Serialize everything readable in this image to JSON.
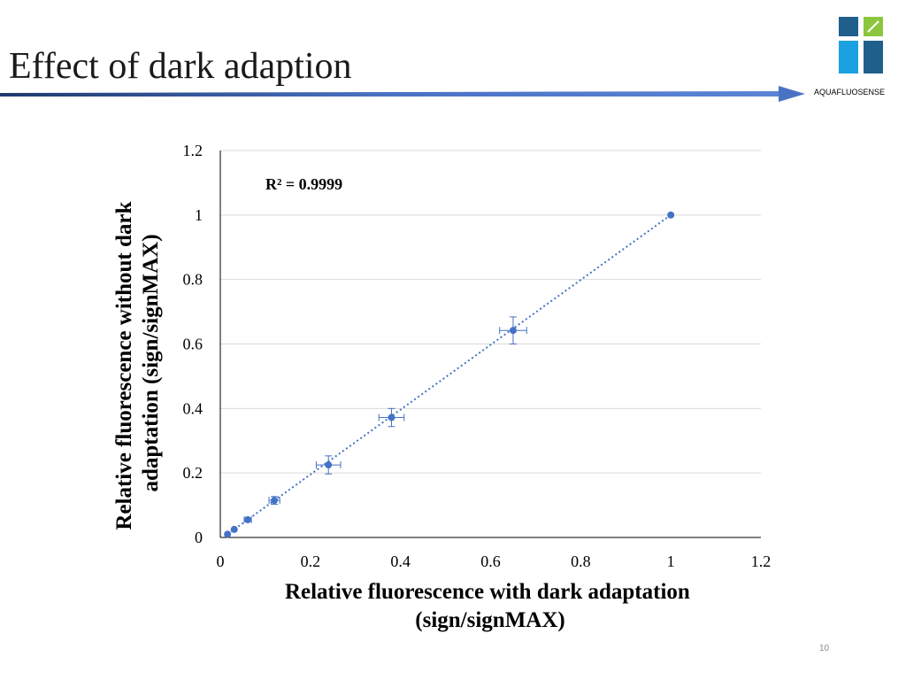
{
  "slide": {
    "title": "Effect of dark adaption",
    "brand": "AQUAFLUOSENSE",
    "page_number": "10"
  },
  "colors": {
    "arrow": "#4a72c4",
    "marker": "#4472c4",
    "trendline": "#4472c4",
    "grid": "#d9d9d9",
    "axis": "#000000",
    "logo_dark": "#1f5f8b",
    "logo_light": "#1ba1e2",
    "logo_green": "#8cc63f"
  },
  "chart_data": {
    "type": "scatter",
    "title": "",
    "xlabel": "Relative fluorescence with dark adaptation (sign/signMAX)",
    "xlabel_lines": [
      "Relative fluorescence with dark adaptation",
      "(sign/signMAX)"
    ],
    "ylabel": "Relative fluorescence without dark adaptation (sign/signMAX)",
    "ylabel_lines": [
      "Relative fluorescence without dark",
      "adaptation (sign/signMAX)"
    ],
    "xlim": [
      0,
      1.2
    ],
    "ylim": [
      0,
      1.2
    ],
    "x_ticks": [
      0,
      0.2,
      0.4,
      0.6,
      0.8,
      1,
      1.2
    ],
    "y_ticks": [
      0,
      0.2,
      0.4,
      0.6,
      0.8,
      1,
      1.2
    ],
    "x_tick_labels": [
      "0",
      "0.2",
      "0.4",
      "0.6",
      "0.8",
      "1",
      "1.2"
    ],
    "y_tick_labels": [
      "0",
      "0.2",
      "0.4",
      "0.6",
      "0.8",
      "1",
      "1.2"
    ],
    "grid": "horizontal",
    "annotation": "R² = 0.9999",
    "trendline": {
      "type": "linear",
      "x_range": [
        0.016,
        1.0
      ],
      "y_range": [
        0.01,
        1.0
      ],
      "style": "dotted"
    },
    "series": [
      {
        "name": "data",
        "points": [
          {
            "x": 0.016,
            "y": 0.01,
            "xerr": 0.0,
            "yerr": 0.0
          },
          {
            "x": 0.031,
            "y": 0.025,
            "xerr": 0.0,
            "yerr": 0.0
          },
          {
            "x": 0.061,
            "y": 0.055,
            "xerr": 0.008,
            "yerr": 0.004
          },
          {
            "x": 0.12,
            "y": 0.115,
            "xerr": 0.012,
            "yerr": 0.012
          },
          {
            "x": 0.24,
            "y": 0.225,
            "xerr": 0.027,
            "yerr": 0.028
          },
          {
            "x": 0.38,
            "y": 0.372,
            "xerr": 0.028,
            "yerr": 0.028
          },
          {
            "x": 0.65,
            "y": 0.642,
            "xerr": 0.03,
            "yerr": 0.042
          },
          {
            "x": 1.0,
            "y": 1.0,
            "xerr": 0.0,
            "yerr": 0.0
          }
        ]
      }
    ]
  }
}
